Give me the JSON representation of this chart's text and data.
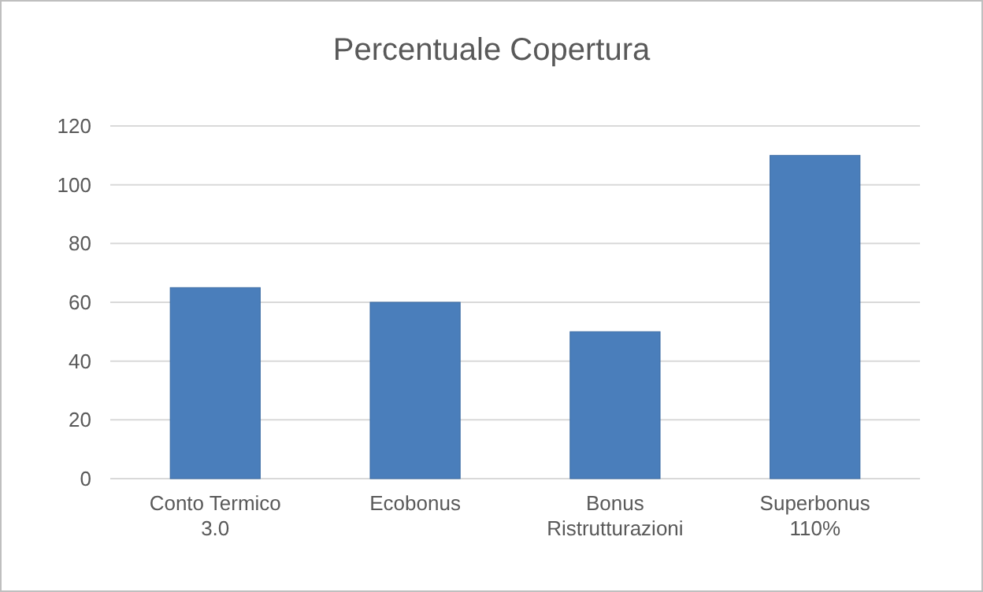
{
  "chart_data": {
    "type": "bar",
    "title": "Percentuale Copertura",
    "categories": [
      "Conto Termico 3.0",
      "Ecobonus",
      "Bonus Ristrutturazioni",
      "Superbonus 110%"
    ],
    "values": [
      65,
      60,
      50,
      110
    ],
    "color": "#4a7ebb",
    "ylim": [
      0,
      120
    ],
    "yticks": [
      0,
      20,
      40,
      60,
      80,
      100,
      120
    ],
    "grid": "y"
  }
}
